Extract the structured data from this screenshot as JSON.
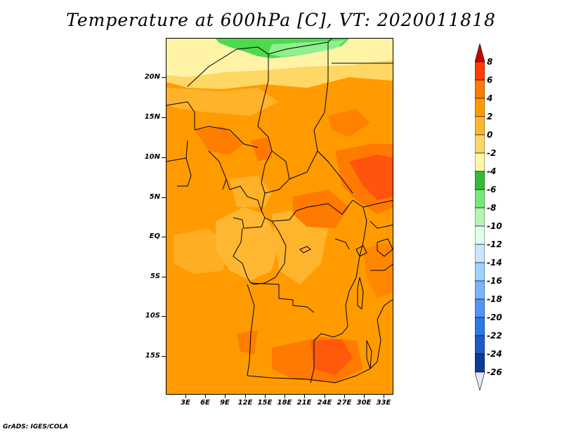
{
  "title": "Temperature at 600hPa [C], VT: 2020011818",
  "credit": "GrADS: IGES/COLA",
  "y_axis_labels": [
    "20N",
    "15N",
    "10N",
    "5N",
    "EQ",
    "5S",
    "10S",
    "15S"
  ],
  "x_axis_labels": [
    "3E",
    "6E",
    "9E",
    "12E",
    "15E",
    "18E",
    "21E",
    "24E",
    "27E",
    "30E",
    "33E"
  ],
  "colorbar": {
    "labels": [
      "8",
      "6",
      "4",
      "2",
      "0",
      "-2",
      "-4",
      "-6",
      "-8",
      "-10",
      "-12",
      "-14",
      "-16",
      "-18",
      "-20",
      "-22",
      "-24",
      "-26"
    ],
    "colors": [
      "#c80000",
      "#ff3c00",
      "#ff7a00",
      "#ff9b00",
      "#ffb732",
      "#ffd764",
      "#fff6a8",
      "#32be32",
      "#78e678",
      "#b4f5b4",
      "#e0fff0",
      "#c8e6ff",
      "#a0d2ff",
      "#78b4ff",
      "#5096fa",
      "#2d78e6",
      "#1e5ac8",
      "#0a3c96",
      "#001464"
    ],
    "tip_top_color": "#c80000",
    "tip_bottom_color": "#e6e6ff"
  },
  "map": {
    "lon_range": [
      0,
      34.5
    ],
    "lat_range": [
      -19.5,
      24.5
    ],
    "colors": {
      "lightyellow": "#fff3a6",
      "yellow": "#ffd764",
      "lightorange": "#ffb732",
      "orange": "#ff9b00",
      "darkorange": "#ff7a00",
      "red": "#ff4d10",
      "green": "#4ed94e",
      "lightgreen": "#8ef08e"
    }
  }
}
